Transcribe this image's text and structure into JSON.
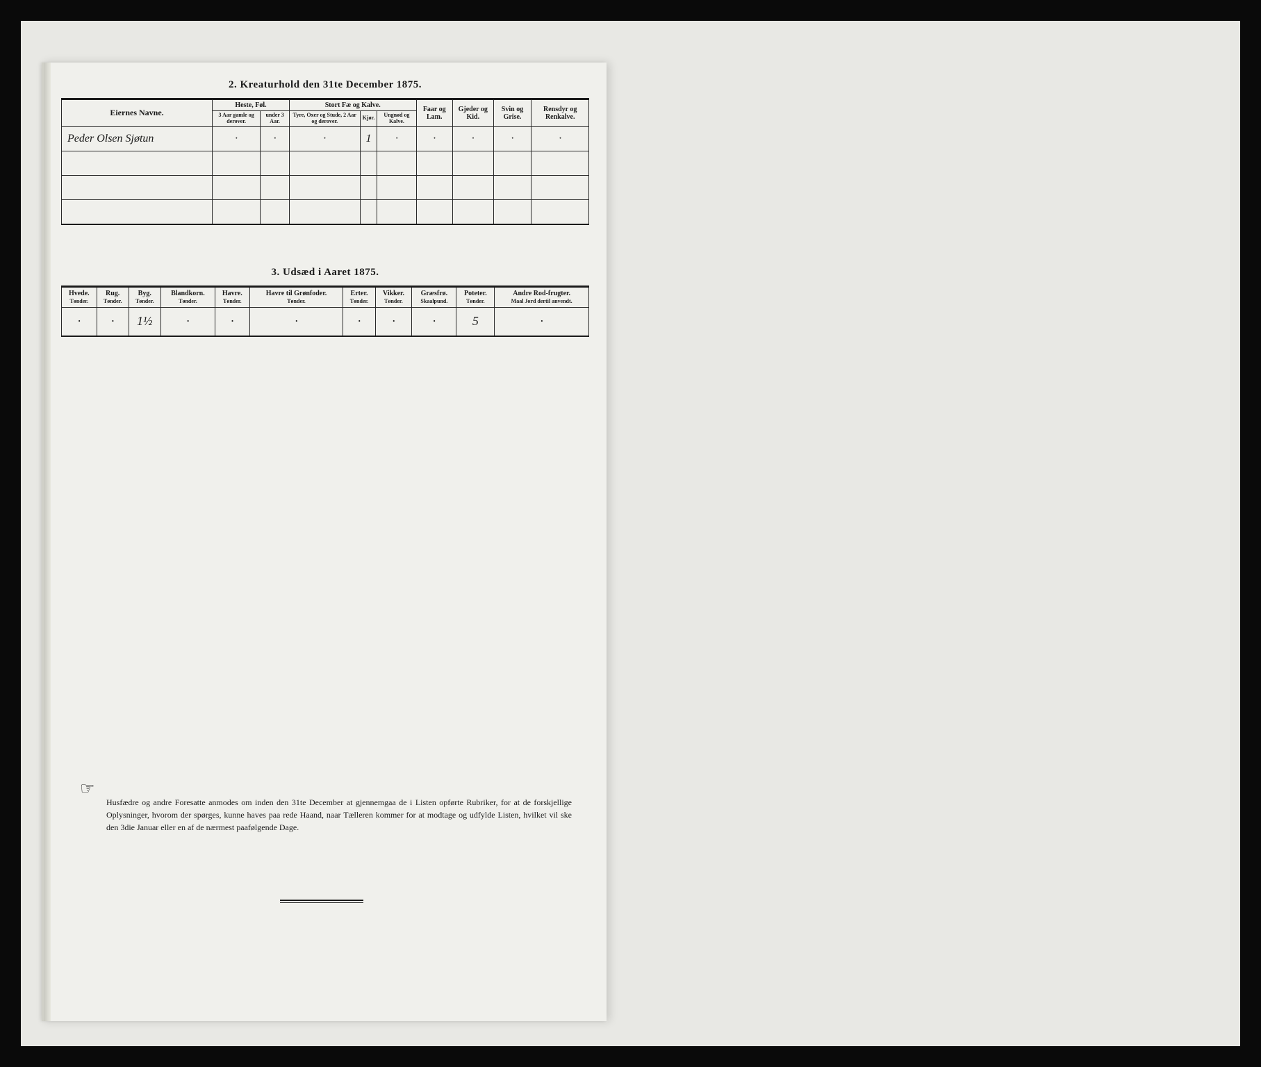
{
  "colors": {
    "scan_bg": "#e8e8e4",
    "page_bg": "#f0f0ec",
    "ink": "#1a1a1a",
    "frame_bg": "#0a0a0a"
  },
  "section2": {
    "title": "2.  Kreaturhold den 31te December 1875.",
    "headers": {
      "name": "Eiernes Navne.",
      "group_heste": "Heste, Føl.",
      "group_stort": "Stort Fæ og Kalve.",
      "faar": "Faar og Lam.",
      "gjeder": "Gjeder og Kid.",
      "svin": "Svin og Grise.",
      "rensdyr": "Rensdyr og Renkalve.",
      "sub_heste1": "3 Aar gamle og derover.",
      "sub_heste2": "under 3 Aar.",
      "sub_stort1": "Tyre, Oxer og Stude, 2 Aar og derover.",
      "sub_stort2": "Kjør.",
      "sub_stort3": "Ungnød og Kalve."
    },
    "rows": [
      {
        "name": "Peder Olsen Sjøtun",
        "c1": "·",
        "c2": "·",
        "c3": "·",
        "c4": "1",
        "c5": "·",
        "c6": "·",
        "c7": "·",
        "c8": "·",
        "c9": "·"
      },
      {
        "name": "",
        "c1": "",
        "c2": "",
        "c3": "",
        "c4": "",
        "c5": "",
        "c6": "",
        "c7": "",
        "c8": "",
        "c9": ""
      },
      {
        "name": "",
        "c1": "",
        "c2": "",
        "c3": "",
        "c4": "",
        "c5": "",
        "c6": "",
        "c7": "",
        "c8": "",
        "c9": ""
      },
      {
        "name": "",
        "c1": "",
        "c2": "",
        "c3": "",
        "c4": "",
        "c5": "",
        "c6": "",
        "c7": "",
        "c8": "",
        "c9": ""
      }
    ]
  },
  "section3": {
    "title": "3.  Udsæd i Aaret 1875.",
    "columns": [
      {
        "label": "Hvede.",
        "unit": "Tønder."
      },
      {
        "label": "Rug.",
        "unit": "Tønder."
      },
      {
        "label": "Byg.",
        "unit": "Tønder."
      },
      {
        "label": "Blandkorn.",
        "unit": "Tønder."
      },
      {
        "label": "Havre.",
        "unit": "Tønder."
      },
      {
        "label": "Havre til Grønfoder.",
        "unit": "Tønder."
      },
      {
        "label": "Erter.",
        "unit": "Tønder."
      },
      {
        "label": "Vikker.",
        "unit": "Tønder."
      },
      {
        "label": "Græsfrø.",
        "unit": "Skaalpund."
      },
      {
        "label": "Poteter.",
        "unit": "Tønder."
      },
      {
        "label": "Andre Rod-frugter.",
        "unit": "Maal Jord dertil anvendt."
      }
    ],
    "row": [
      "·",
      "·",
      "1½",
      "·",
      "·",
      "·",
      "·",
      "·",
      "·",
      "5",
      "·"
    ]
  },
  "notice": {
    "icon": "☞",
    "text": "Husfædre og andre Foresatte anmodes om inden den 31te December at gjennemgaa de i Listen opførte Rubriker, for at de forskjellige Oplysninger, hvorom der spørges, kunne haves paa rede Haand, naar Tælleren kommer for at modtage og udfylde Listen, hvilket vil ske den 3die Januar eller en af de nærmest paafølgende Dage."
  }
}
